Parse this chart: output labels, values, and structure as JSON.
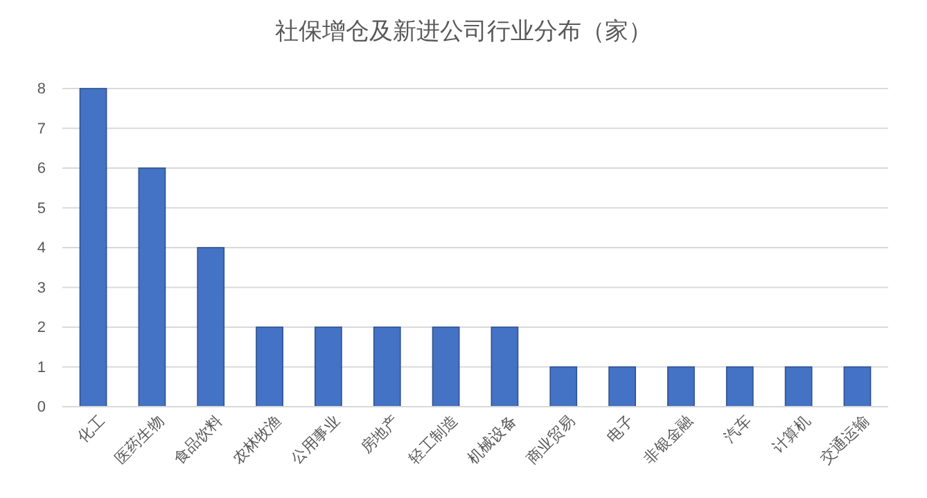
{
  "chart_data": {
    "type": "bar",
    "title": "社保增仓及新进公司行业分布（家）",
    "categories": [
      "化工",
      "医药生物",
      "食品饮料",
      "农林牧渔",
      "公用事业",
      "房地产",
      "轻工制造",
      "机械设备",
      "商业贸易",
      "电子",
      "非银金融",
      "汽车",
      "计算机",
      "交通运输"
    ],
    "values": [
      8,
      6,
      4,
      2,
      2,
      2,
      2,
      2,
      1,
      1,
      1,
      1,
      1,
      1
    ],
    "color": "#4472c4",
    "ylim": [
      0,
      8
    ],
    "yticks": [
      0,
      1,
      2,
      3,
      4,
      5,
      6,
      7,
      8
    ],
    "grid": "y"
  }
}
